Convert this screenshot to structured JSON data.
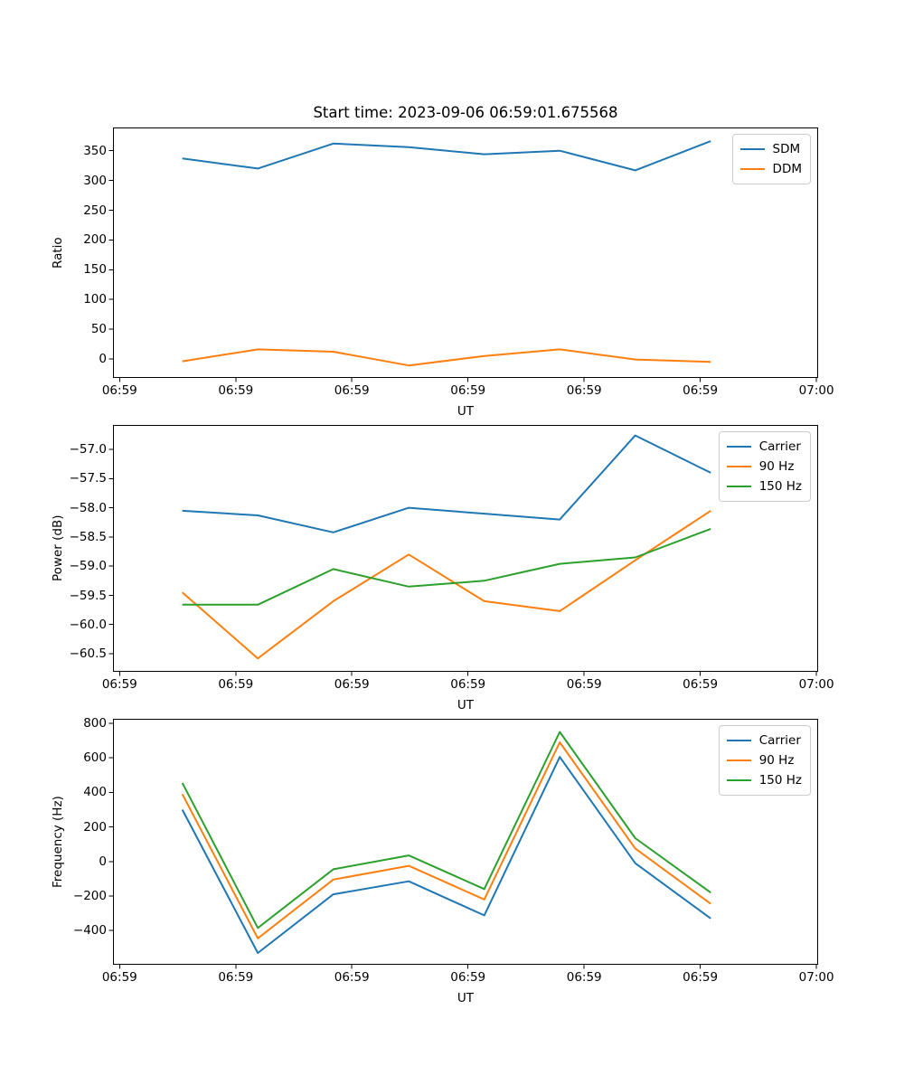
{
  "figure_title": "Start time: 2023-09-06 06:59:01.675568",
  "colors": {
    "blue": "#1f77b4",
    "orange": "#ff7f0e",
    "green": "#2ca02c",
    "axis": "#000000",
    "legend_border": "#cccccc",
    "background": "#ffffff"
  },
  "chart_data": [
    {
      "type": "line",
      "title": "Start time: 2023-09-06 06:59:01.675568",
      "xlabel": "UT",
      "ylabel": "Ratio",
      "grid": false,
      "legend_position": "upper right",
      "xlim": [
        -0.57,
        60.15
      ],
      "ylim": [
        -32,
        389
      ],
      "x_ticks": [
        {
          "t": 0,
          "label": "06:59"
        },
        {
          "t": 10,
          "label": "06:59"
        },
        {
          "t": 20,
          "label": "06:59"
        },
        {
          "t": 30,
          "label": "06:59"
        },
        {
          "t": 40,
          "label": "06:59"
        },
        {
          "t": 50,
          "label": "06:59"
        },
        {
          "t": 60,
          "label": "07:00"
        }
      ],
      "y_ticks": [
        {
          "value": 0,
          "label": "0"
        },
        {
          "value": 50,
          "label": "50"
        },
        {
          "value": 100,
          "label": "100"
        },
        {
          "value": 150,
          "label": "150"
        },
        {
          "value": 200,
          "label": "200"
        },
        {
          "value": 250,
          "label": "250"
        },
        {
          "value": 300,
          "label": "300"
        },
        {
          "value": 350,
          "label": "350"
        }
      ],
      "x_seconds": [
        5.4,
        11.9,
        18.4,
        24.9,
        31.4,
        37.9,
        44.4,
        50.9
      ],
      "series": [
        {
          "name": "SDM",
          "color": "#1f77b4",
          "values": [
            337,
            320,
            362,
            356,
            344,
            350,
            317,
            366
          ]
        },
        {
          "name": "DDM",
          "color": "#ff7f0e",
          "values": [
            -4,
            16,
            12,
            -11,
            5,
            16,
            -1,
            -5
          ]
        }
      ]
    },
    {
      "type": "line",
      "title": "",
      "xlabel": "UT",
      "ylabel": "Power (dB)",
      "grid": false,
      "legend_position": "upper right",
      "xlim": [
        -0.57,
        60.15
      ],
      "ylim": [
        -60.81,
        -56.58
      ],
      "x_ticks": [
        {
          "t": 0,
          "label": "06:59"
        },
        {
          "t": 10,
          "label": "06:59"
        },
        {
          "t": 20,
          "label": "06:59"
        },
        {
          "t": 30,
          "label": "06:59"
        },
        {
          "t": 40,
          "label": "06:59"
        },
        {
          "t": 50,
          "label": "06:59"
        },
        {
          "t": 60,
          "label": "07:00"
        }
      ],
      "y_ticks": [
        {
          "value": -57.0,
          "label": "−57.0"
        },
        {
          "value": -57.5,
          "label": "−57.5"
        },
        {
          "value": -58.0,
          "label": "−58.0"
        },
        {
          "value": -58.5,
          "label": "−58.5"
        },
        {
          "value": -59.0,
          "label": "−59.0"
        },
        {
          "value": -59.5,
          "label": "−59.5"
        },
        {
          "value": -60.0,
          "label": "−60.0"
        },
        {
          "value": -60.5,
          "label": "−60.5"
        }
      ],
      "x_seconds": [
        5.4,
        11.9,
        18.4,
        24.9,
        31.4,
        37.9,
        44.4,
        50.9
      ],
      "series": [
        {
          "name": "Carrier",
          "color": "#1f77b4",
          "values": [
            -58.05,
            -58.13,
            -58.42,
            -58.0,
            -58.1,
            -58.2,
            -56.76,
            -57.4
          ]
        },
        {
          "name": "90 Hz",
          "color": "#ff7f0e",
          "values": [
            -59.45,
            -60.58,
            -59.6,
            -58.8,
            -59.6,
            -59.77,
            -58.9,
            -58.05
          ]
        },
        {
          "name": "150 Hz",
          "color": "#2ca02c",
          "values": [
            -59.66,
            -59.66,
            -59.05,
            -59.35,
            -59.25,
            -58.96,
            -58.85,
            -58.36
          ]
        }
      ]
    },
    {
      "type": "line",
      "title": "",
      "xlabel": "UT",
      "ylabel": "Frequency (Hz)",
      "grid": false,
      "legend_position": "upper right",
      "xlim": [
        -0.57,
        60.15
      ],
      "ylim": [
        -598,
        826
      ],
      "x_ticks": [
        {
          "t": 0,
          "label": "06:59"
        },
        {
          "t": 10,
          "label": "06:59"
        },
        {
          "t": 20,
          "label": "06:59"
        },
        {
          "t": 30,
          "label": "06:59"
        },
        {
          "t": 40,
          "label": "06:59"
        },
        {
          "t": 50,
          "label": "06:59"
        },
        {
          "t": 60,
          "label": "07:00"
        }
      ],
      "y_ticks": [
        {
          "value": 800,
          "label": "800"
        },
        {
          "value": 600,
          "label": "600"
        },
        {
          "value": 400,
          "label": "400"
        },
        {
          "value": 200,
          "label": "200"
        },
        {
          "value": 0,
          "label": "0"
        },
        {
          "value": -200,
          "label": "−200"
        },
        {
          "value": -400,
          "label": "−400"
        }
      ],
      "x_seconds": [
        5.4,
        11.9,
        18.4,
        24.9,
        31.4,
        37.9,
        44.4,
        50.9
      ],
      "series": [
        {
          "name": "Carrier",
          "color": "#1f77b4",
          "values": [
            300,
            -530,
            -190,
            -115,
            -312,
            605,
            -10,
            -330
          ]
        },
        {
          "name": "90 Hz",
          "color": "#ff7f0e",
          "values": [
            390,
            -445,
            -105,
            -25,
            -220,
            690,
            75,
            -245
          ]
        },
        {
          "name": "150 Hz",
          "color": "#2ca02c",
          "values": [
            455,
            -385,
            -45,
            35,
            -160,
            750,
            135,
            -180
          ]
        }
      ]
    }
  ]
}
